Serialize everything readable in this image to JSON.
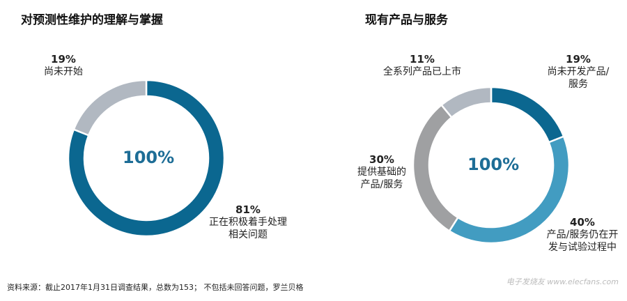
{
  "chart_data": [
    {
      "type": "pie",
      "title": "对预测性维护的理解与掌握",
      "center_label": "100%",
      "slices": [
        {
          "label": "正在积极着手处理相关问题",
          "value": 81,
          "display": "81%",
          "color": "#0b6790"
        },
        {
          "label": "尚未开始",
          "value": 19,
          "display": "19%",
          "color": "#b1b8c1"
        }
      ]
    },
    {
      "type": "pie",
      "title": "现有产品与服务",
      "center_label": "100%",
      "slices": [
        {
          "label": "尚未开发产品/服务",
          "value": 19,
          "display": "19%",
          "color": "#0b6790"
        },
        {
          "label": "产品/服务仍在开发与试验过程中",
          "value": 40,
          "display": "40%",
          "color": "#429cc1"
        },
        {
          "label": "提供基础的产品/服务",
          "value": 30,
          "display": "30%",
          "color": "#9fa0a2"
        },
        {
          "label": "全系列产品已上市",
          "value": 11,
          "display": "11%",
          "color": "#b1b8c1"
        }
      ]
    }
  ],
  "footnote": "资料来源：截止2017年1月31日调查结果，总数为153；  不包括未回答问题，罗兰贝格",
  "watermark": "电子发烧友 www.elecfans.com"
}
